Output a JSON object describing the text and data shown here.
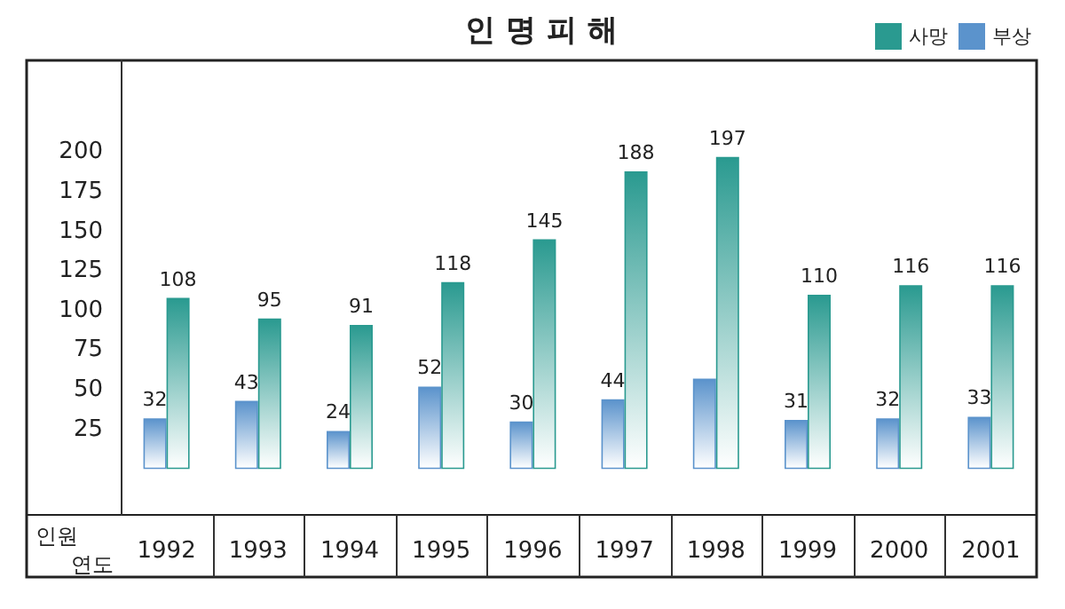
{
  "chart_data": {
    "type": "bar",
    "title": "인 명 피 해",
    "xlabel": "연도",
    "ylabel": "인원",
    "categories": [
      "1992",
      "1993",
      "1994",
      "1995",
      "1996",
      "1997",
      "1998",
      "1999",
      "2000",
      "2001"
    ],
    "series": [
      {
        "name": "부상",
        "color": "#5b93cc",
        "values": [
          32,
          43,
          24,
          52,
          30,
          44,
          57,
          31,
          32,
          33
        ],
        "value_labels": [
          "32",
          "43",
          "24",
          "52",
          "30",
          "44",
          null,
          "31",
          "32",
          "33"
        ]
      },
      {
        "name": "사망",
        "color": "#2a9a90",
        "values": [
          108,
          95,
          91,
          118,
          145,
          188,
          197,
          110,
          116,
          116
        ],
        "value_labels": [
          "108",
          "95",
          "91",
          "118",
          "145",
          "188",
          "197",
          "110",
          "116",
          "116"
        ]
      }
    ],
    "ylim": [
      -29,
      258
    ],
    "yticks": [
      25,
      50,
      75,
      100,
      125,
      150,
      175,
      200
    ],
    "grid": false,
    "legend": "top right"
  }
}
